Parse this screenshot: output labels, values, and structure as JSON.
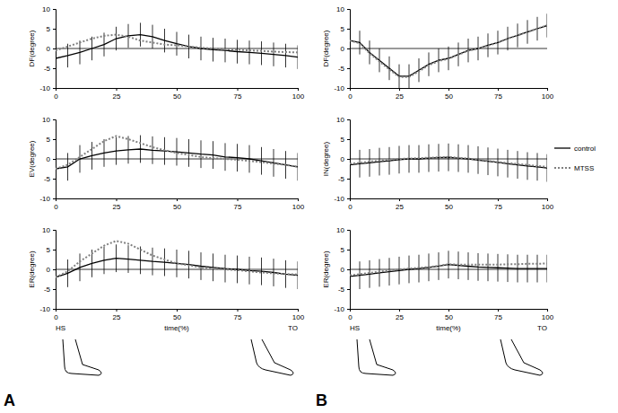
{
  "chart_data": [
    {
      "type": "line",
      "ylabel": "DF(degree)",
      "x": [
        0,
        5,
        10,
        15,
        20,
        25,
        30,
        35,
        40,
        45,
        50,
        55,
        60,
        65,
        70,
        75,
        80,
        85,
        90,
        95,
        100
      ],
      "xlim": [
        0,
        100
      ],
      "xticks": [
        0,
        25,
        50,
        75,
        100
      ],
      "ylim": [
        -10,
        10
      ],
      "yticks": [
        -10,
        -5,
        0,
        5,
        10
      ],
      "series": [
        {
          "name": "control",
          "color": "#000000",
          "line_style": "solid",
          "values": [
            -2.5,
            -1.8,
            -1,
            0,
            1,
            2.5,
            3.2,
            3.5,
            3,
            2,
            1.2,
            0.5,
            0,
            -0.3,
            -0.5,
            -0.8,
            -1,
            -1.2,
            -1.5,
            -1.8,
            -2.2
          ],
          "errors": [
            3,
            3,
            3,
            3,
            3,
            3,
            3,
            3,
            3,
            3,
            3,
            3,
            3,
            3,
            3,
            3,
            3,
            3,
            3,
            3,
            3
          ]
        },
        {
          "name": "MTSS",
          "color": "#808080",
          "line_style": "dotted",
          "values": [
            -0.5,
            0.5,
            1.5,
            2.5,
            3.2,
            3.5,
            3,
            2,
            1.5,
            1,
            0.8,
            0.5,
            0.2,
            0,
            -0.2,
            -0.3,
            -0.5,
            -0.6,
            -0.8,
            -0.9,
            -1
          ]
        }
      ]
    },
    {
      "type": "line",
      "ylabel": "EV(degree)",
      "x": [
        0,
        5,
        10,
        15,
        20,
        25,
        30,
        35,
        40,
        45,
        50,
        55,
        60,
        65,
        70,
        75,
        80,
        85,
        90,
        95,
        100
      ],
      "xlim": [
        0,
        100
      ],
      "xticks": [
        0,
        25,
        50,
        75,
        100
      ],
      "ylim": [
        -10,
        10
      ],
      "yticks": [
        -10,
        -5,
        0,
        5,
        10
      ],
      "series": [
        {
          "name": "control",
          "color": "#000000",
          "line_style": "solid",
          "values": [
            -2.5,
            -2,
            0,
            0.8,
            1.5,
            2,
            2.3,
            2.5,
            2.2,
            2,
            1.8,
            1.5,
            1.2,
            1,
            0.5,
            0.3,
            0,
            -0.5,
            -1,
            -1.5,
            -2
          ],
          "errors": [
            3.5,
            3.5,
            3.5,
            3.5,
            3.5,
            3.5,
            3.5,
            3.5,
            3.5,
            3.5,
            3.5,
            3.5,
            3.5,
            3.5,
            3.5,
            3.5,
            3.5,
            3.5,
            3.5,
            3.5,
            3.5
          ]
        },
        {
          "name": "MTSS",
          "color": "#808080",
          "line_style": "dotted",
          "values": [
            -2.5,
            -1.5,
            0.5,
            2.5,
            4.5,
            5.8,
            5,
            4,
            3,
            2.2,
            1.5,
            1,
            0.5,
            0.2,
            0,
            -0.2,
            -0.5,
            -0.8,
            -1.2,
            -1.5,
            -2
          ]
        }
      ]
    },
    {
      "type": "line",
      "ylabel": "ER(degree)",
      "xlabel": "time(%)",
      "x": [
        0,
        5,
        10,
        15,
        20,
        25,
        30,
        35,
        40,
        45,
        50,
        55,
        60,
        65,
        70,
        75,
        80,
        85,
        90,
        95,
        100
      ],
      "xlim": [
        0,
        100
      ],
      "xticks": [
        0,
        25,
        50,
        75,
        100
      ],
      "ylim": [
        -10,
        10
      ],
      "yticks": [
        -10,
        -5,
        0,
        5,
        10
      ],
      "annotations": [
        {
          "text": "HS",
          "x": 0
        },
        {
          "text": "TO",
          "x": 100
        }
      ],
      "series": [
        {
          "name": "control",
          "color": "#000000",
          "line_style": "solid",
          "values": [
            -2,
            -1,
            0.5,
            1.5,
            2.3,
            2.8,
            2.6,
            2.3,
            2,
            1.8,
            1.5,
            1.2,
            0.8,
            0.5,
            0.2,
            0,
            -0.3,
            -0.5,
            -0.8,
            -1.2,
            -1.5
          ],
          "errors": [
            3.5,
            3.5,
            3.5,
            3.5,
            3.5,
            3.5,
            3.5,
            3.5,
            3.5,
            3.5,
            3.5,
            3.5,
            3.5,
            3.5,
            3.5,
            3.5,
            3.5,
            3.5,
            3.5,
            3.5,
            3.5
          ]
        },
        {
          "name": "MTSS",
          "color": "#808080",
          "line_style": "dotted",
          "values": [
            -2,
            -0.5,
            2,
            4,
            6,
            7.2,
            6.5,
            5,
            3.5,
            2.5,
            1.5,
            1,
            0.5,
            0.2,
            0,
            -0.2,
            -0.5,
            -0.8,
            -1,
            -1.2,
            -1.3
          ]
        }
      ]
    },
    {
      "type": "line",
      "ylabel": "DF(degree)",
      "x": [
        0,
        5,
        10,
        15,
        20,
        25,
        30,
        35,
        40,
        45,
        50,
        55,
        60,
        65,
        70,
        75,
        80,
        85,
        90,
        95,
        100
      ],
      "xlim": [
        0,
        100
      ],
      "xticks": [
        0,
        25,
        50,
        75,
        100
      ],
      "ylim": [
        -10,
        10
      ],
      "yticks": [
        -10,
        -5,
        0,
        5,
        10
      ],
      "series": [
        {
          "name": "control",
          "color": "#000000",
          "line_style": "solid",
          "values": [
            2,
            1.5,
            -1,
            -3,
            -5,
            -7,
            -7,
            -5.5,
            -4,
            -3,
            -2.5,
            -1.5,
            -0.5,
            0,
            0.8,
            1.5,
            2.5,
            3.3,
            4.2,
            5,
            5.8
          ],
          "errors": [
            3,
            3,
            3,
            3,
            3,
            3,
            3,
            3,
            3,
            3,
            3,
            3,
            3,
            3,
            3,
            3,
            3,
            3,
            3,
            3,
            3
          ]
        },
        {
          "name": "MTSS",
          "color": "#808080",
          "line_style": "dotted",
          "values": [
            2,
            1.3,
            -1.2,
            -3.3,
            -5.3,
            -7.2,
            -7.2,
            -5.8,
            -4.2,
            -3.2,
            -2.6,
            -1.6,
            -0.6,
            0,
            0.7,
            1.5,
            2.5,
            3.3,
            4.2,
            5,
            5.9
          ]
        }
      ]
    },
    {
      "type": "line",
      "ylabel": "IN(degree)",
      "x": [
        0,
        5,
        10,
        15,
        20,
        25,
        30,
        35,
        40,
        45,
        50,
        55,
        60,
        65,
        70,
        75,
        80,
        85,
        90,
        95,
        100
      ],
      "xlim": [
        0,
        100
      ],
      "xticks": [
        0,
        25,
        50,
        75,
        100
      ],
      "ylim": [
        -10,
        10
      ],
      "yticks": [
        -10,
        -5,
        0,
        5,
        10
      ],
      "legend": "right",
      "series": [
        {
          "name": "control",
          "color": "#000000",
          "line_style": "solid",
          "values": [
            -1.5,
            -1.2,
            -1,
            -0.7,
            -0.5,
            -0.2,
            0,
            0,
            0.2,
            0.3,
            0.4,
            0.2,
            0,
            -0.3,
            -0.6,
            -0.9,
            -1.2,
            -1.5,
            -1.8,
            -2,
            -2.3
          ],
          "errors": [
            3.5,
            3.5,
            3.5,
            3.5,
            3.5,
            3.5,
            3.5,
            3.5,
            3.5,
            3.5,
            3.5,
            3.5,
            3.5,
            3.5,
            3.5,
            3.5,
            3.5,
            3.5,
            3.5,
            3.5,
            3.5
          ]
        },
        {
          "name": "MTSS",
          "color": "#808080",
          "line_style": "dotted",
          "values": [
            -1.2,
            -1,
            -0.7,
            -0.4,
            -0.2,
            0,
            0.1,
            0.2,
            0.3,
            0.4,
            0.5,
            0.3,
            0.1,
            -0.2,
            -0.5,
            -0.8,
            -1,
            -1.3,
            -1.5,
            -1.8,
            -2
          ]
        }
      ]
    },
    {
      "type": "line",
      "ylabel": "ER(degree)",
      "xlabel": "time(%)",
      "x": [
        0,
        5,
        10,
        15,
        20,
        25,
        30,
        35,
        40,
        45,
        50,
        55,
        60,
        65,
        70,
        75,
        80,
        85,
        90,
        95,
        100
      ],
      "xlim": [
        0,
        100
      ],
      "xticks": [
        0,
        25,
        50,
        75,
        100
      ],
      "ylim": [
        -10,
        10
      ],
      "yticks": [
        -10,
        -5,
        0,
        5,
        10
      ],
      "annotations": [
        {
          "text": "HS",
          "x": 0
        },
        {
          "text": "TO",
          "x": 100
        }
      ],
      "series": [
        {
          "name": "control",
          "color": "#000000",
          "line_style": "solid",
          "values": [
            -1.8,
            -1.5,
            -1.2,
            -0.9,
            -0.6,
            -0.3,
            0,
            0.2,
            0.5,
            0.8,
            1.2,
            1,
            0.8,
            0.6,
            0.5,
            0.4,
            0.3,
            0.2,
            0.2,
            0.2,
            0.2
          ],
          "errors": [
            3.5,
            3.5,
            3.5,
            3.5,
            3.5,
            3.5,
            3.5,
            3.5,
            3.5,
            3.5,
            3.5,
            3.5,
            3.5,
            3.5,
            3.5,
            3.5,
            3.5,
            3.5,
            3.5,
            3.5,
            3.5
          ]
        },
        {
          "name": "MTSS",
          "color": "#808080",
          "line_style": "dotted",
          "values": [
            -1.5,
            -1.2,
            -0.9,
            -0.6,
            -0.3,
            0,
            0.2,
            0.4,
            0.6,
            0.9,
            1.3,
            1.2,
            1.2,
            1.2,
            1.2,
            1.2,
            1.3,
            1.3,
            1.4,
            1.4,
            1.5
          ]
        }
      ]
    }
  ],
  "panel_labels": [
    "A",
    "B"
  ]
}
